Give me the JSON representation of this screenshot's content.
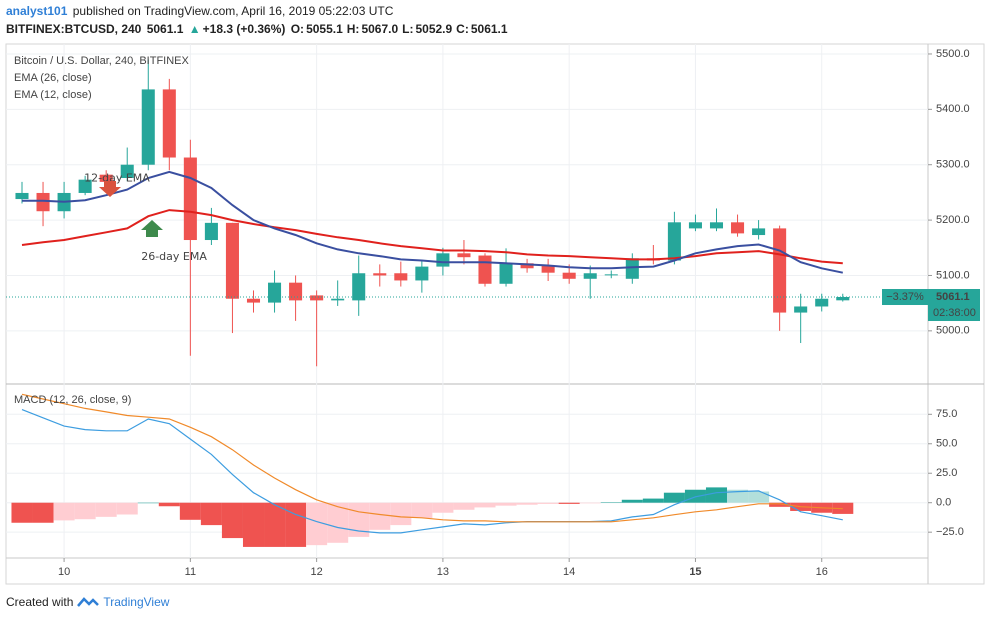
{
  "header": {
    "author": "analyst101",
    "published": "published on TradingView.com, April 16, 2019 05:22:03 UTC",
    "symbol": "BITFINEX:BTCUSD, 240",
    "last": "5061.1",
    "change": "+18.3 (+0.36%)",
    "ohlc": [
      {
        "key": "O:",
        "text": "5055.1"
      },
      {
        "key": "H:",
        "text": "5067.0"
      },
      {
        "key": "L:",
        "text": "5052.9"
      },
      {
        "key": "C:",
        "text": "5061.1"
      }
    ]
  },
  "footer": {
    "created": "Created with",
    "brand": "TradingView"
  },
  "chart_data": [
    {
      "type": "candlestick",
      "title": "Bitcoin / U.S. Dollar, 240, BITFINEX",
      "up_color": "#26a69a",
      "down_color": "#ef5350",
      "x": [
        0,
        1,
        2,
        3,
        4,
        5,
        6,
        7,
        8,
        9,
        10,
        11,
        12,
        13,
        14,
        15,
        16,
        17,
        18,
        19,
        20,
        21,
        22,
        23,
        24,
        25,
        26,
        27,
        28,
        29,
        30,
        31,
        32,
        33,
        34,
        35,
        36,
        37,
        38,
        39
      ],
      "open": [
        5238,
        5249,
        5216,
        5249,
        5282,
        5276,
        5300,
        5436,
        5313,
        5164,
        5195,
        5058,
        5051,
        5087,
        5064,
        5055,
        5055,
        5104,
        5104,
        5091,
        5116,
        5140,
        5136,
        5085,
        5122,
        5118,
        5105,
        5094,
        5102,
        5094,
        5131,
        5127,
        5185,
        5185,
        5196,
        5173,
        5185,
        5033,
        5044,
        5055.1
      ],
      "high": [
        5269,
        5269,
        5269,
        5280,
        5290,
        5331,
        5490,
        5455,
        5345,
        5222,
        5195,
        5073,
        5109,
        5100,
        5073,
        5091,
        5136,
        5120,
        5125,
        5127,
        5150,
        5164,
        5140,
        5149,
        5130,
        5130,
        5120,
        5118,
        5109,
        5140,
        5155,
        5215,
        5210,
        5221,
        5210,
        5200,
        5190,
        5067,
        5067,
        5067.0
      ],
      "low": [
        5230,
        5189,
        5203,
        5245,
        5260,
        5270,
        5290,
        5290,
        4955,
        5155,
        4996,
        5033,
        5033,
        5018,
        4936,
        5045,
        5027,
        5080,
        5080,
        5069,
        5100,
        5120,
        5080,
        5080,
        5105,
        5090,
        5085,
        5058,
        5095,
        5085,
        5120,
        5120,
        5180,
        5180,
        5170,
        5165,
        5000,
        4978,
        5035,
        5052.9
      ],
      "close": [
        5249,
        5216,
        5249,
        5273,
        5269,
        5300,
        5436,
        5313,
        5164,
        5195,
        5058,
        5051,
        5087,
        5055,
        5055,
        5058,
        5104,
        5100,
        5091,
        5116,
        5140,
        5133,
        5085,
        5122,
        5113,
        5105,
        5094,
        5104,
        5102,
        5131,
        5127,
        5196,
        5196,
        5196,
        5176,
        5185,
        5033,
        5044,
        5058,
        5061.1
      ],
      "series": [
        {
          "name": "EMA (26, close)",
          "color": "#e0211d",
          "values": [
            5155,
            5160,
            5164,
            5171,
            5178,
            5185,
            5207,
            5218,
            5215,
            5209,
            5200,
            5193,
            5187,
            5182,
            5175,
            5169,
            5164,
            5158,
            5153,
            5149,
            5145,
            5145,
            5144,
            5142,
            5138,
            5136,
            5135,
            5133,
            5131,
            5129,
            5129,
            5131,
            5135,
            5140,
            5142,
            5144,
            5138,
            5131,
            5125,
            5122
          ]
        },
        {
          "name": "EMA (12, close)",
          "color": "#3a4fa0",
          "values": [
            5235,
            5235,
            5233,
            5236,
            5245,
            5255,
            5276,
            5287,
            5276,
            5258,
            5227,
            5200,
            5185,
            5173,
            5158,
            5147,
            5140,
            5135,
            5129,
            5127,
            5124,
            5124,
            5124,
            5122,
            5120,
            5118,
            5115,
            5113,
            5113,
            5115,
            5116,
            5127,
            5140,
            5147,
            5153,
            5156,
            5145,
            5124,
            5113,
            5105
          ]
        }
      ],
      "annotations": [
        {
          "text": "12-day EMA",
          "x": 5,
          "y": 5275
        },
        {
          "text": "26-day EMA",
          "x": 7,
          "y": 5133
        }
      ],
      "price_tag": {
        "change": "−3.37%",
        "value": 5061.1,
        "countdown": "02:38:00"
      },
      "xlim": [
        -0.76,
        43.05
      ],
      "ylim": [
        4904,
        5518
      ],
      "xticks": [
        {
          "value": 2,
          "label": "10"
        },
        {
          "value": 8,
          "label": "11"
        },
        {
          "value": 14,
          "label": "12"
        },
        {
          "value": 20,
          "label": "13"
        },
        {
          "value": 26,
          "label": "14"
        },
        {
          "value": 32,
          "label": "15"
        },
        {
          "value": 38,
          "label": "16"
        }
      ],
      "yticks": [
        {
          "value": 5000,
          "label": "5000.0"
        },
        {
          "value": 5100,
          "label": "5100.0"
        },
        {
          "value": 5200,
          "label": "5200.0"
        },
        {
          "value": 5300,
          "label": "5300.0"
        },
        {
          "value": 5400,
          "label": "5400.0"
        },
        {
          "value": 5500,
          "label": "5500.0"
        }
      ],
      "grid": true
    },
    {
      "type": "macd",
      "title": "MACD (12, 26, close, 9)",
      "x": [
        0,
        1,
        2,
        3,
        4,
        5,
        6,
        7,
        8,
        9,
        10,
        11,
        12,
        13,
        14,
        15,
        16,
        17,
        18,
        19,
        20,
        21,
        22,
        23,
        24,
        25,
        26,
        27,
        28,
        29,
        30,
        31,
        32,
        33,
        34,
        35,
        36,
        37,
        38,
        39
      ],
      "histogram": [
        -17,
        -17,
        -15,
        -14,
        -12,
        -10,
        0,
        -3,
        -14.5,
        -19,
        -30,
        -37.5,
        -37.5,
        -37.5,
        -36,
        -34,
        -29,
        -23,
        -19,
        -13,
        -8.5,
        -6,
        -4,
        -2.5,
        -1.7,
        -1,
        -1,
        -0.5,
        0.3,
        2.5,
        3.5,
        8.5,
        11,
        13,
        11,
        9.5,
        -3.5,
        -7,
        -8.5,
        -9.5
      ],
      "histogram_colors": [
        "#26a69a",
        "#b2dfdb",
        "#ffcdd2",
        "#ef5350"
      ],
      "series": [
        {
          "name": "MACD",
          "color": "#3d9de0",
          "values": [
            79,
            72,
            65,
            62,
            61,
            61,
            71,
            67,
            54,
            41,
            24,
            8.5,
            -1.7,
            -10,
            -16,
            -21,
            -24,
            -25.6,
            -25.6,
            -23,
            -20.5,
            -18,
            -18.8,
            -17,
            -16,
            -16,
            -16,
            -16,
            -15.4,
            -12,
            -10,
            -1.7,
            5,
            8.5,
            9.4,
            10,
            2.5,
            -7.7,
            -11,
            -14.5
          ]
        },
        {
          "name": "Signal",
          "color": "#f08a2a",
          "values": [
            92,
            88,
            84,
            80,
            77,
            74,
            72.5,
            71,
            64,
            56,
            45,
            32,
            21,
            11,
            2.5,
            -3.4,
            -7.7,
            -10,
            -12,
            -12.8,
            -14.5,
            -15.4,
            -15.4,
            -16.2,
            -16.2,
            -16.2,
            -16.2,
            -16.2,
            -16.2,
            -14.5,
            -12.8,
            -10.2,
            -7.7,
            -6,
            -3.4,
            -0.9,
            -0.9,
            -3.4,
            -4.3,
            -5.1
          ]
        }
      ],
      "xlim": [
        -0.76,
        43.05
      ],
      "ylim": [
        -46.9,
        100.7
      ],
      "yticks": [
        {
          "value": -25,
          "label": "−25.0"
        },
        {
          "value": 0,
          "label": "0.0"
        },
        {
          "value": 25,
          "label": "25.0"
        },
        {
          "value": 50,
          "label": "50.0"
        },
        {
          "value": 75,
          "label": "75.0"
        }
      ],
      "grid": true
    }
  ]
}
